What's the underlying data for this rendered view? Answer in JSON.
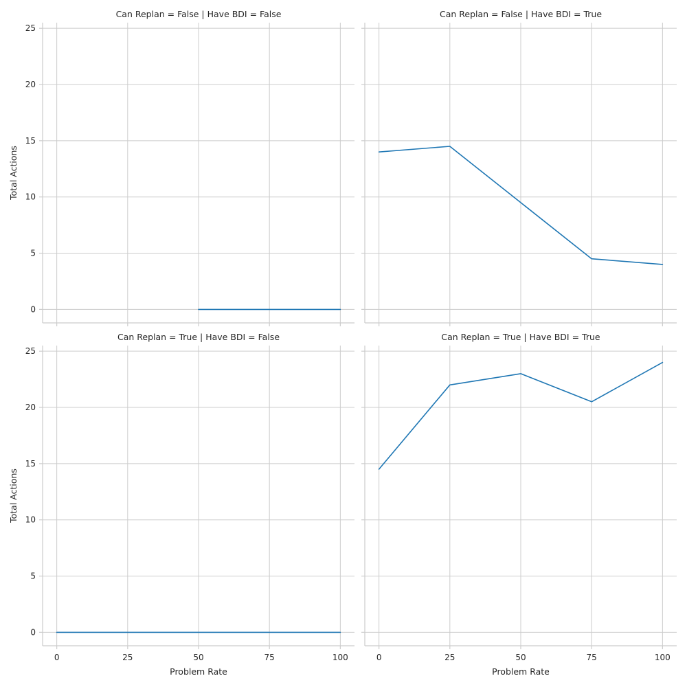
{
  "chart_data": {
    "type": "line",
    "layout": "facet-grid-2x2",
    "sharex": true,
    "sharey": true,
    "xlim": [
      -5,
      105
    ],
    "ylim": [
      -1.2,
      25.5
    ],
    "xticks": [
      0,
      25,
      50,
      75,
      100
    ],
    "yticks": [
      0,
      5,
      10,
      15,
      20,
      25
    ],
    "xlabel": "Problem Rate",
    "ylabel": "Total Actions",
    "grid": true,
    "line_color": "#1f77b4",
    "panels": [
      {
        "title": "Can Replan = False | Have BDI = False",
        "x": [
          50,
          75,
          100
        ],
        "y": [
          0,
          0,
          0
        ]
      },
      {
        "title": "Can Replan = False | Have BDI = True",
        "x": [
          0,
          25,
          50,
          75,
          100
        ],
        "y": [
          14,
          14.5,
          9.5,
          4.5,
          4
        ]
      },
      {
        "title": "Can Replan = True | Have BDI = False",
        "x": [
          0,
          25,
          50,
          75,
          100
        ],
        "y": [
          0,
          0,
          0,
          0,
          0
        ]
      },
      {
        "title": "Can Replan = True | Have BDI = True",
        "x": [
          0,
          25,
          50,
          75,
          100
        ],
        "y": [
          14.5,
          22,
          23,
          20.5,
          24
        ]
      }
    ]
  }
}
